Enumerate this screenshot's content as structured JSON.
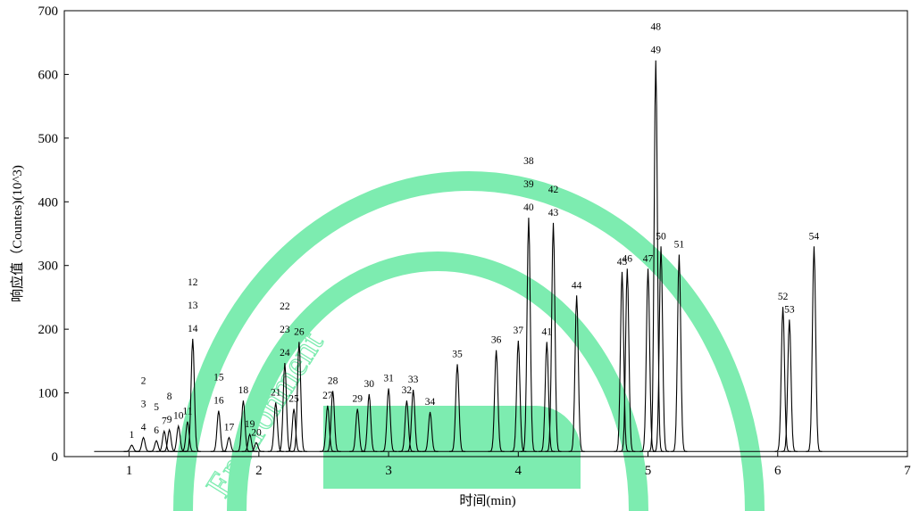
{
  "chart_data": {
    "type": "chromatogram",
    "xlabel": "时间(min)",
    "ylabel": "响应值（Countes)(10^3)",
    "watermark": "Environment",
    "xlim": [
      0.5,
      7
    ],
    "xticks": [
      1,
      2,
      3,
      4,
      5,
      6,
      7
    ],
    "ylim": [
      0,
      700
    ],
    "yticks": [
      0,
      100,
      200,
      300,
      400,
      500,
      600,
      700
    ],
    "color": "#000000",
    "baseline": 8,
    "baseline_x": [
      0.73,
      7
    ],
    "x": [
      1.02,
      1.11,
      1.21,
      1.27,
      1.31,
      1.38,
      1.45,
      1.49,
      1.69,
      1.77,
      1.88,
      1.93,
      1.98,
      2.13,
      2.2,
      2.27,
      2.31,
      2.53,
      2.57,
      2.76,
      2.85,
      3.0,
      3.14,
      3.19,
      3.32,
      3.53,
      3.83,
      4.0,
      4.08,
      4.22,
      4.27,
      4.45,
      4.8,
      4.84,
      5.0,
      5.06,
      5.1,
      5.24,
      6.04,
      6.09,
      6.28
    ],
    "values": [
      18,
      30,
      25,
      40,
      42,
      48,
      55,
      185,
      72,
      30,
      88,
      35,
      22,
      85,
      147,
      75,
      180,
      80,
      103,
      75,
      98,
      107,
      88,
      105,
      70,
      145,
      167,
      182,
      375,
      180,
      367,
      253,
      290,
      295,
      295,
      622,
      330,
      317,
      235,
      215,
      330
    ],
    "peak_labels": [
      [
        "1"
      ],
      [
        "2",
        "3",
        "4"
      ],
      [
        "5",
        "6"
      ],
      [
        "7"
      ],
      [
        "8",
        "9"
      ],
      [
        "10"
      ],
      [
        "11"
      ],
      [
        "12",
        "13",
        "14"
      ],
      [
        "15",
        "16"
      ],
      [
        "17"
      ],
      [
        "18"
      ],
      [
        "19"
      ],
      [
        "20"
      ],
      [
        "21"
      ],
      [
        "22",
        "23",
        "24"
      ],
      [
        "25"
      ],
      [
        "26"
      ],
      [
        "27"
      ],
      [
        "28"
      ],
      [
        "29"
      ],
      [
        "30"
      ],
      [
        "31"
      ],
      [
        "32"
      ],
      [
        "33"
      ],
      [
        "34"
      ],
      [
        "35"
      ],
      [
        "36"
      ],
      [
        "37"
      ],
      [
        "38",
        "39",
        "40"
      ],
      [
        "41"
      ],
      [
        "42",
        "43"
      ],
      [
        "44"
      ],
      [
        "45"
      ],
      [
        "46"
      ],
      [
        "47"
      ],
      [
        "48",
        "49"
      ],
      [
        "50"
      ],
      [
        "51"
      ],
      [
        "52"
      ],
      [
        "53"
      ],
      [
        "54"
      ]
    ]
  }
}
